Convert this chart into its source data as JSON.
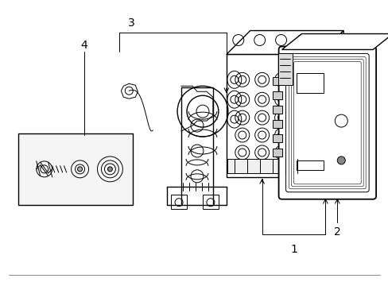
{
  "bg_color": "#ffffff",
  "line_color": "#000000",
  "label_color": "#000000",
  "label_fontsize": 10,
  "figsize": [
    4.89,
    3.6
  ],
  "dpi": 100
}
